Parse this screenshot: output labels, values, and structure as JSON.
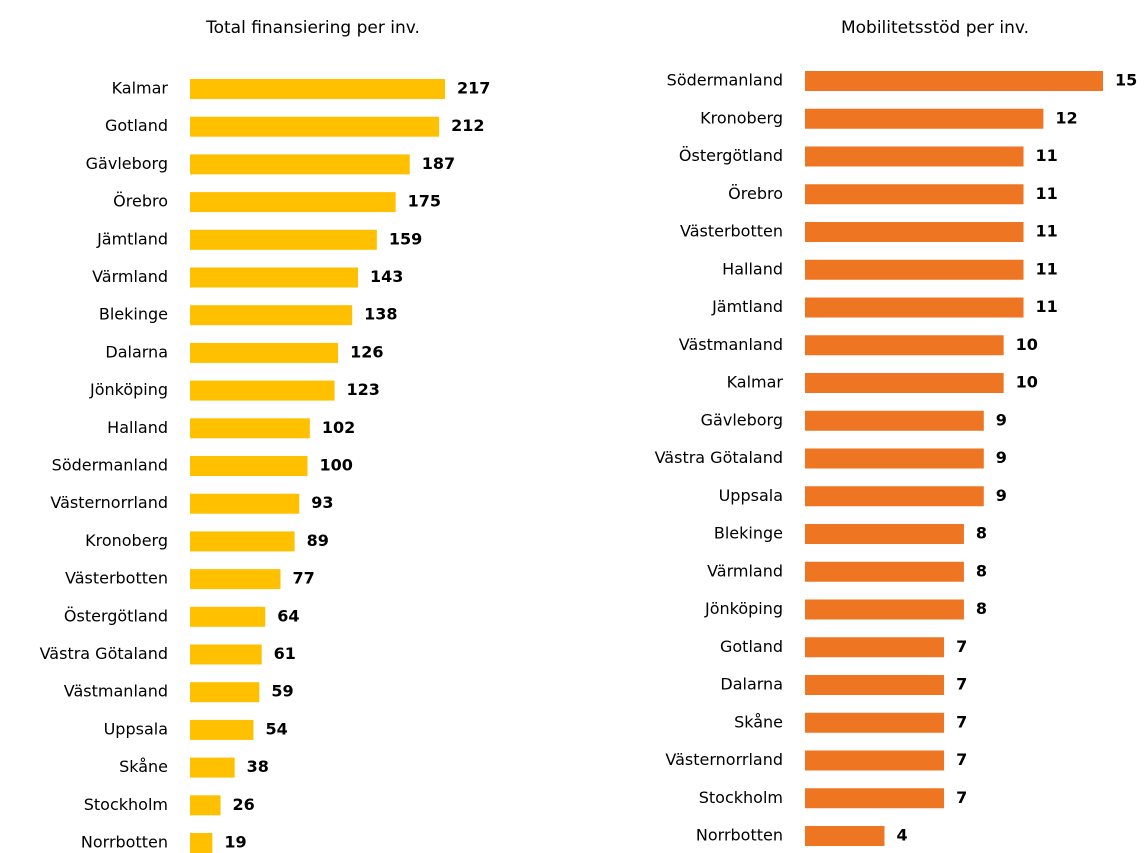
{
  "chart_data": [
    {
      "type": "bar",
      "orientation": "horizontal",
      "title": "Total finansiering per inv.",
      "color": "#ffc000",
      "categories": [
        "Kalmar",
        "Gotland",
        "Gävleborg",
        "Örebro",
        "Jämtland",
        "Värmland",
        "Blekinge",
        "Dalarna",
        "Jönköping",
        "Halland",
        "Södermanland",
        "Västernorrland",
        "Kronoberg",
        "Västerbotten",
        "Östergötland",
        "Västra Götaland",
        "Västmanland",
        "Uppsala",
        "Skåne",
        "Stockholm",
        "Norrbotten"
      ],
      "values": [
        217,
        212,
        187,
        175,
        159,
        143,
        138,
        126,
        123,
        102,
        100,
        93,
        89,
        77,
        64,
        61,
        59,
        54,
        38,
        26,
        19
      ]
    },
    {
      "type": "bar",
      "orientation": "horizontal",
      "title": "Mobilitetsstöd per inv.",
      "color": "#ee7623",
      "categories": [
        "Södermanland",
        "Kronoberg",
        "Östergötland",
        "Örebro",
        "Västerbotten",
        "Halland",
        "Jämtland",
        "Västmanland",
        "Kalmar",
        "Gävleborg",
        "Västra Götaland",
        "Uppsala",
        "Blekinge",
        "Värmland",
        "Jönköping",
        "Gotland",
        "Dalarna",
        "Skåne",
        "Västernorrland",
        "Stockholm",
        "Norrbotten"
      ],
      "values": [
        15,
        12,
        11,
        11,
        11,
        11,
        11,
        10,
        10,
        9,
        9,
        9,
        8,
        8,
        8,
        7,
        7,
        7,
        7,
        7,
        4
      ]
    }
  ]
}
